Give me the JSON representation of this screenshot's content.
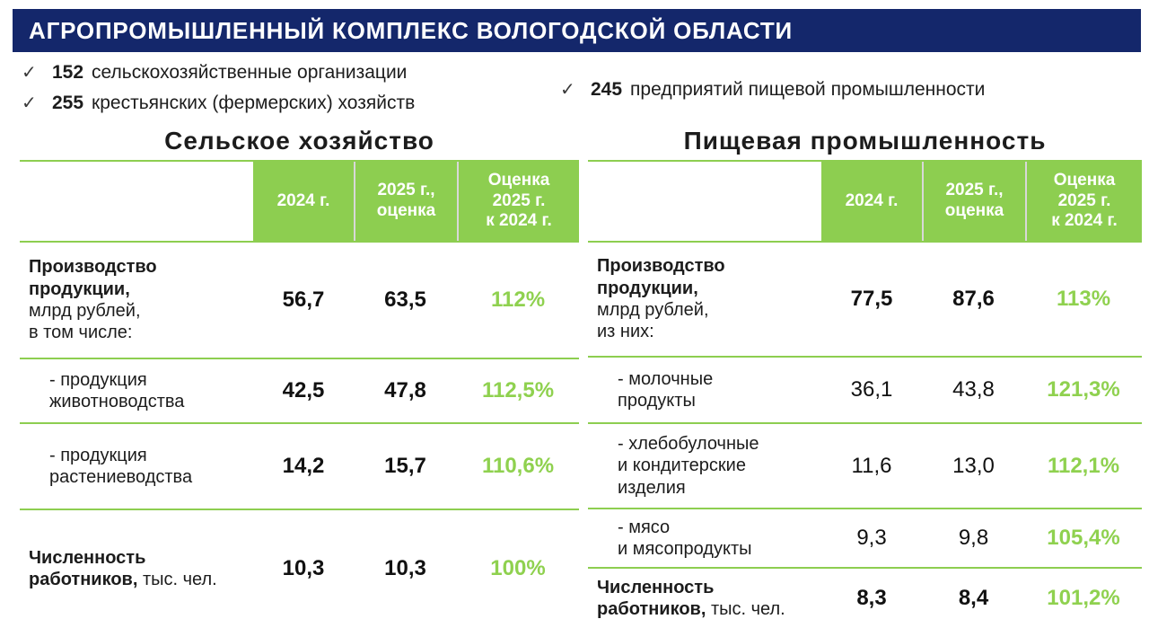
{
  "header": {
    "title": "АГРОПРОМЫШЛЕННЫЙ КОМПЛЕКС ВОЛОГОДСКОЙ ОБЛАСТИ"
  },
  "facts": {
    "check_glyph": "✓",
    "left": [
      {
        "value": "152",
        "text": "сельскохозяйственные организации"
      },
      {
        "value": "255",
        "text": "крестьянских (фермерских) хозяйств"
      }
    ],
    "right": [
      {
        "value": "245",
        "text": "предприятий пищевой промышленности"
      }
    ]
  },
  "colors": {
    "navy": "#14276b",
    "cell_green": "#8dce50",
    "accent_green": "#8fd14f",
    "divider_gray": "#d8d8d8"
  },
  "tables": [
    {
      "id": "agriculture",
      "title": "Сельское хозяйство",
      "columns": [
        "2024 г.",
        "2025 г.,\nоценка",
        "Оценка\n2025 г.\nк 2024 г."
      ],
      "rows": [
        {
          "label": [
            {
              "t": "Производство\nпродукции,",
              "b": true
            },
            {
              "t": "\nмлрд рублей,\nв том числе:",
              "b": false
            }
          ],
          "indent": false,
          "values": [
            "56,7",
            "63,5"
          ],
          "values_bold": true,
          "pct": "112%"
        },
        {
          "label": [
            {
              "t": "- продукция\nживотноводства",
              "b": false
            }
          ],
          "indent": true,
          "values": [
            "42,5",
            "47,8"
          ],
          "values_bold": true,
          "pct": "112,5%"
        },
        {
          "label": [
            {
              "t": "- продукция\nрастениеводства",
              "b": false
            }
          ],
          "indent": true,
          "values": [
            "14,2",
            "15,7"
          ],
          "values_bold": true,
          "pct": "110,6%"
        },
        {
          "label": [
            {
              "t": "Численность\nработников,",
              "b": true
            },
            {
              "t": " тыс. чел.",
              "b": false
            }
          ],
          "indent": false,
          "values": [
            "10,3",
            "10,3"
          ],
          "values_bold": true,
          "pct": "100%"
        }
      ]
    },
    {
      "id": "food",
      "title": "Пищевая промышленность",
      "columns": [
        "2024 г.",
        "2025 г.,\nоценка",
        "Оценка\n2025 г.\nк 2024 г."
      ],
      "rows": [
        {
          "label": [
            {
              "t": "Производство\nпродукции,",
              "b": true
            },
            {
              "t": "\nмлрд рублей,\nиз них:",
              "b": false
            }
          ],
          "indent": false,
          "values": [
            "77,5",
            "87,6"
          ],
          "values_bold": true,
          "pct": "113%"
        },
        {
          "label": [
            {
              "t": "- молочные\nпродукты",
              "b": false
            }
          ],
          "indent": true,
          "values": [
            "36,1",
            "43,8"
          ],
          "values_bold": false,
          "pct": "121,3%"
        },
        {
          "label": [
            {
              "t": "-  хлебобулочные\nи кондитерские\nизделия",
              "b": false
            }
          ],
          "indent": true,
          "values": [
            "11,6",
            "13,0"
          ],
          "values_bold": false,
          "pct": "112,1%"
        },
        {
          "label": [
            {
              "t": "-  мясо\nи мясопродукты",
              "b": false
            }
          ],
          "indent": true,
          "values": [
            "9,3",
            "9,8"
          ],
          "values_bold": false,
          "pct": "105,4%"
        },
        {
          "label": [
            {
              "t": "Численность\nработников,",
              "b": true
            },
            {
              "t": " тыс. чел.",
              "b": false
            }
          ],
          "indent": false,
          "values": [
            "8,3",
            "8,4"
          ],
          "values_bold": true,
          "pct": "101,2%"
        }
      ]
    }
  ]
}
